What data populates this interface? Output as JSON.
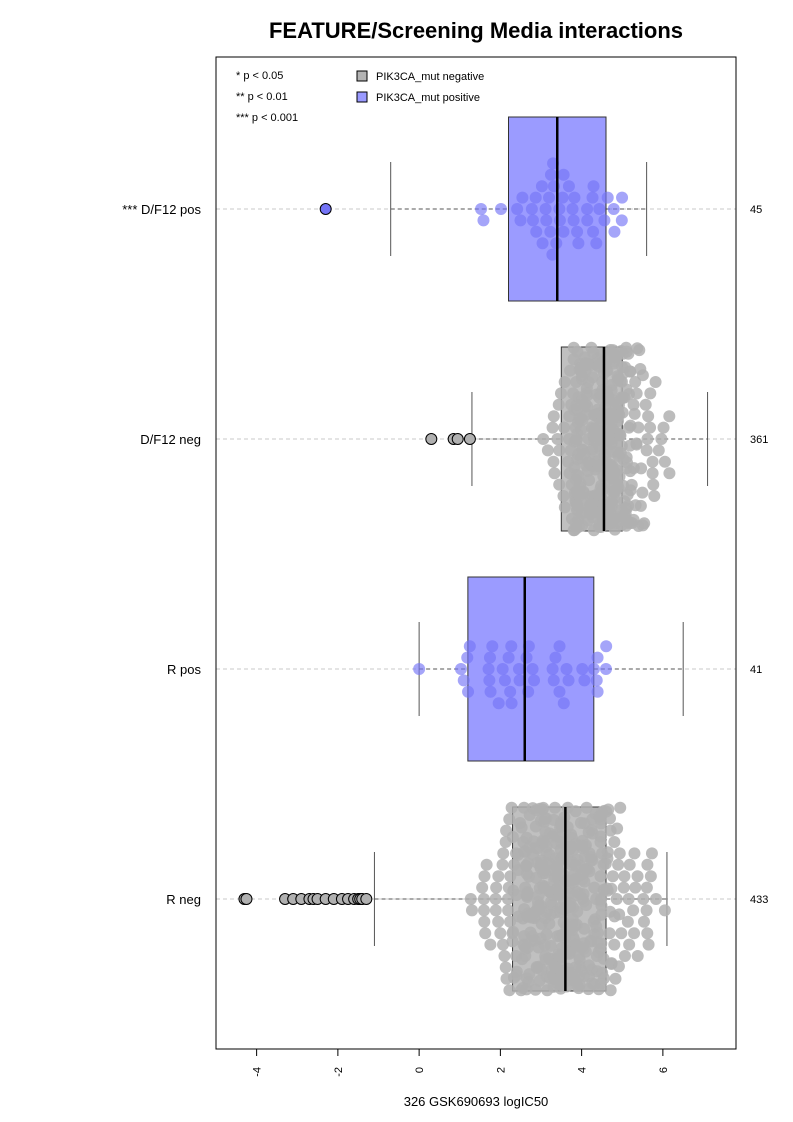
{
  "chart_data": {
    "type": "box_beeswarm",
    "title": "FEATURE/Screening Media interactions",
    "xlabel": "326 GSK690693 logIC50",
    "xlim": [
      -5.0,
      7.8
    ],
    "x_ticks": [
      -4,
      -2,
      0,
      2,
      4,
      6
    ],
    "x_tick_labels": [
      "-4",
      "-2",
      "0",
      "2",
      "4",
      "6"
    ],
    "grid": "horizontal dashed lines at each group",
    "legend_position": "top-left",
    "significance_legend": [
      "* p < 0.05",
      "** p < 0.01",
      "*** p < 0.001"
    ],
    "legend": [
      {
        "label": "PIK3CA_mut negative",
        "color": "#b4b4b4"
      },
      {
        "label": "PIK3CA_mut positive",
        "color": "#9a9aff"
      }
    ],
    "colors": {
      "negative_box": "#c0c0c0",
      "negative_points": "#b0b0b0",
      "positive_box": "#9b9bff",
      "positive_points": "#7474f6"
    },
    "groups": [
      {
        "label": "*** D/F12 pos",
        "count": "45",
        "status": "positive",
        "whisker_low": -0.7,
        "q1": 2.2,
        "median": 3.4,
        "q3": 4.6,
        "whisker_high": 5.6,
        "outliers": [
          -2.3
        ]
      },
      {
        "label": "D/F12 neg",
        "count": "361",
        "status": "negative",
        "whisker_low": 1.3,
        "q1": 3.5,
        "median": 4.55,
        "q3": 5.0,
        "whisker_high": 7.1,
        "outliers": [
          0.3,
          0.85,
          0.95,
          1.25
        ]
      },
      {
        "label": "R pos",
        "count": "41",
        "status": "positive",
        "whisker_low": 0.0,
        "q1": 1.2,
        "median": 2.6,
        "q3": 4.3,
        "whisker_high": 6.5,
        "outliers": []
      },
      {
        "label": "R neg",
        "count": "433",
        "status": "negative",
        "whisker_low": -1.1,
        "q1": 2.3,
        "median": 3.6,
        "q3": 4.6,
        "whisker_high": 6.1,
        "outliers": [
          -4.3,
          -4.25,
          -3.3,
          -3.1,
          -2.9,
          -2.7,
          -2.6,
          -2.5,
          -2.3,
          -2.1,
          -1.9,
          -1.75,
          -1.6,
          -1.5,
          -1.45,
          -1.4,
          -1.3
        ]
      }
    ]
  }
}
